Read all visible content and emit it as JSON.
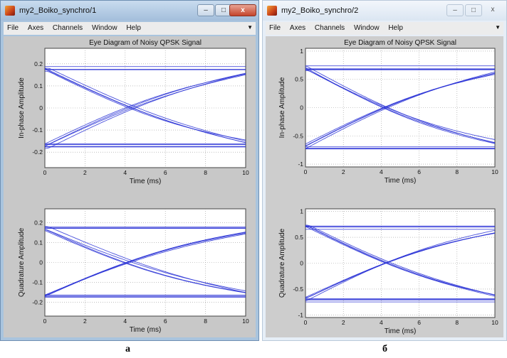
{
  "windows": [
    {
      "title": "my2_Boiko_synchro/1",
      "controls": {
        "minimize": "–",
        "maximize": "□",
        "close": "x"
      },
      "menu": [
        "File",
        "Axes",
        "Channels",
        "Window",
        "Help"
      ],
      "caption": "а",
      "plots": [
        {
          "title": "Eye Diagram of Noisy QPSK Signal",
          "ylabel": "In-phase Amplitude",
          "xlabel": "Time (ms)",
          "xticks": [
            "0",
            "2",
            "4",
            "6",
            "8",
            "10"
          ],
          "yticks": [
            "-0.2",
            "-0.1",
            "0",
            "0.1",
            "0.2"
          ],
          "xlim": [
            0,
            10
          ],
          "ylim": [
            -0.27,
            0.27
          ],
          "A": 0.18
        },
        {
          "title": "",
          "ylabel": "Quadrature Amplitude",
          "xlabel": "Time (ms)",
          "xticks": [
            "0",
            "2",
            "4",
            "6",
            "8",
            "10"
          ],
          "yticks": [
            "-0.2",
            "-0.1",
            "0",
            "0.1",
            "0.2"
          ],
          "xlim": [
            0,
            10
          ],
          "ylim": [
            -0.27,
            0.27
          ],
          "A": 0.18
        }
      ]
    },
    {
      "title": "my2_Boiko_synchro/2",
      "controls": {
        "minimize": "–",
        "maximize": "□",
        "close": "x"
      },
      "menu": [
        "File",
        "Axes",
        "Channels",
        "Window",
        "Help"
      ],
      "caption": "б",
      "plots": [
        {
          "title": "Eye Diagram of Noisy QPSK Signal",
          "ylabel": "In-phase Amplitude",
          "xlabel": "Time (ms)",
          "xticks": [
            "0",
            "2",
            "4",
            "6",
            "8",
            "10"
          ],
          "yticks": [
            "-1",
            "-0.5",
            "0",
            "0.5",
            "1"
          ],
          "xlim": [
            0,
            10
          ],
          "ylim": [
            -1.05,
            1.05
          ],
          "A": 0.72
        },
        {
          "title": "",
          "ylabel": "Quadrature Amplitude",
          "xlabel": "Time (ms)",
          "xticks": [
            "0",
            "2",
            "4",
            "6",
            "8",
            "10"
          ],
          "yticks": [
            "-1",
            "-0.5",
            "0",
            "0.5",
            "1"
          ],
          "xlim": [
            0,
            10
          ],
          "ylim": [
            -1.05,
            1.05
          ],
          "A": 0.72
        }
      ]
    }
  ],
  "chart_data": [
    {
      "type": "line",
      "title": "Eye Diagram of Noisy QPSK Signal",
      "xlabel": "Time (ms)",
      "ylabel": "In-phase Amplitude",
      "xlim": [
        0,
        10
      ],
      "ylim": [
        -0.27,
        0.27
      ]
    },
    {
      "type": "line",
      "title": "",
      "xlabel": "Time (ms)",
      "ylabel": "Quadrature Amplitude",
      "xlim": [
        0,
        10
      ],
      "ylim": [
        -0.27,
        0.27
      ]
    },
    {
      "type": "line",
      "title": "Eye Diagram of Noisy QPSK Signal",
      "xlabel": "Time (ms)",
      "ylabel": "In-phase Amplitude",
      "xlim": [
        0,
        10
      ],
      "ylim": [
        -1.05,
        1.05
      ]
    },
    {
      "type": "line",
      "title": "",
      "xlabel": "Time (ms)",
      "ylabel": "Quadrature Amplitude",
      "xlim": [
        0,
        10
      ],
      "ylim": [
        -1.05,
        1.05
      ]
    }
  ],
  "colors": {
    "trace": "#2a33d6",
    "axes_bg": "#ffffff",
    "figure_bg": "#c8c8c8"
  }
}
